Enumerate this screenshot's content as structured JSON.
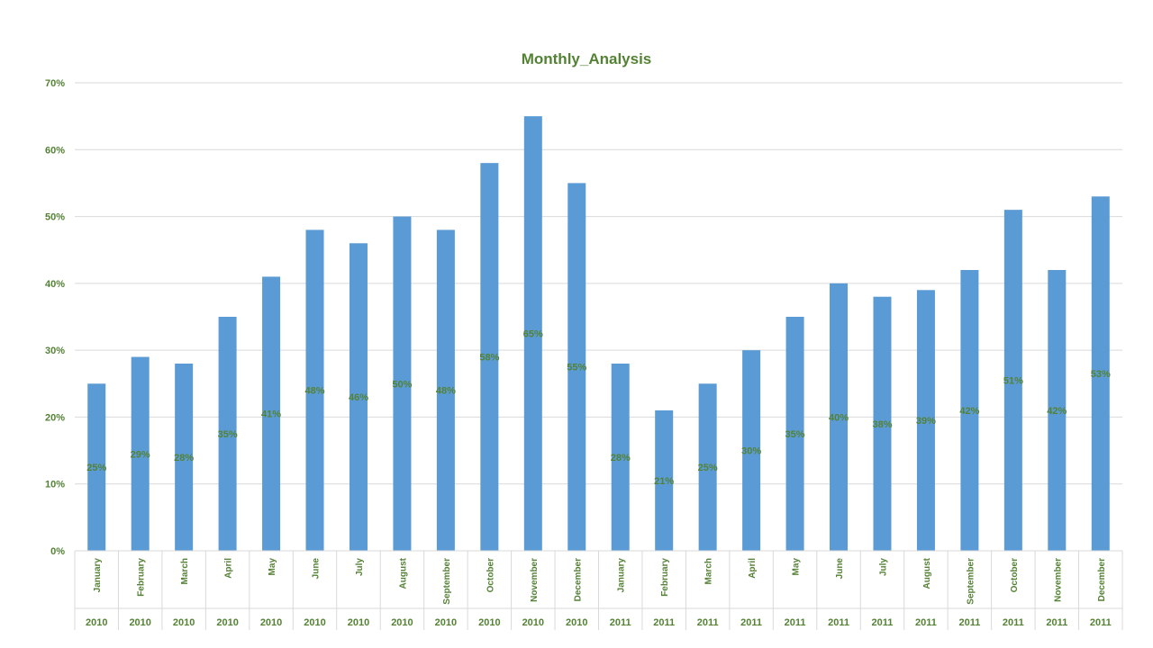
{
  "colors": {
    "bar": "#5B9BD5",
    "text": "#548235",
    "grid": "#D9D9D9"
  },
  "chart_data": {
    "type": "bar",
    "title": "Monthly_Analysis",
    "xlabel": "",
    "ylabel": "",
    "ylim": [
      0,
      0.7
    ],
    "y_ticks": [
      "0%",
      "10%",
      "20%",
      "30%",
      "40%",
      "50%",
      "60%",
      "70%"
    ],
    "grid": true,
    "legend": "none",
    "categories": [
      {
        "month": "January",
        "year": "2010"
      },
      {
        "month": "February",
        "year": "2010"
      },
      {
        "month": "March",
        "year": "2010"
      },
      {
        "month": "April",
        "year": "2010"
      },
      {
        "month": "May",
        "year": "2010"
      },
      {
        "month": "June",
        "year": "2010"
      },
      {
        "month": "July",
        "year": "2010"
      },
      {
        "month": "August",
        "year": "2010"
      },
      {
        "month": "September",
        "year": "2010"
      },
      {
        "month": "October",
        "year": "2010"
      },
      {
        "month": "November",
        "year": "2010"
      },
      {
        "month": "December",
        "year": "2010"
      },
      {
        "month": "January",
        "year": "2011"
      },
      {
        "month": "February",
        "year": "2011"
      },
      {
        "month": "March",
        "year": "2011"
      },
      {
        "month": "April",
        "year": "2011"
      },
      {
        "month": "May",
        "year": "2011"
      },
      {
        "month": "June",
        "year": "2011"
      },
      {
        "month": "July",
        "year": "2011"
      },
      {
        "month": "August",
        "year": "2011"
      },
      {
        "month": "September",
        "year": "2011"
      },
      {
        "month": "October",
        "year": "2011"
      },
      {
        "month": "November",
        "year": "2011"
      },
      {
        "month": "December",
        "year": "2011"
      }
    ],
    "values": [
      0.25,
      0.29,
      0.28,
      0.35,
      0.41,
      0.48,
      0.46,
      0.5,
      0.48,
      0.58,
      0.65,
      0.55,
      0.28,
      0.21,
      0.25,
      0.3,
      0.35,
      0.4,
      0.38,
      0.39,
      0.42,
      0.51,
      0.42,
      0.53
    ],
    "data_labels": [
      "25%",
      "29%",
      "28%",
      "35%",
      "41%",
      "48%",
      "46%",
      "50%",
      "48%",
      "58%",
      "65%",
      "55%",
      "28%",
      "21%",
      "25%",
      "30%",
      "35%",
      "40%",
      "38%",
      "39%",
      "42%",
      "51%",
      "42%",
      "53%"
    ]
  }
}
